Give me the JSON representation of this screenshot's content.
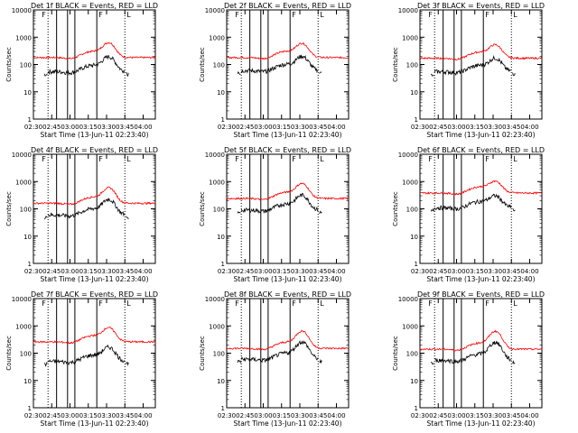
{
  "chart_data": {
    "type": "line",
    "panels": [
      {
        "title": "Det 1f BLACK = Events, RED = LLD",
        "markers": [
          "F",
          "L"
        ],
        "red_base": 180,
        "black_base": 55,
        "peak": 3.2
      },
      {
        "title": "Det 2f BLACK = Events, RED = LLD",
        "markers": [
          "F",
          "L"
        ],
        "red_base": 180,
        "black_base": 60,
        "peak": 3.0
      },
      {
        "title": "Det 3f BLACK = Events, RED = LLD",
        "markers": [
          "F",
          "L"
        ],
        "red_base": 170,
        "black_base": 55,
        "peak": 2.8
      },
      {
        "title": "Det 4f BLACK = Events, RED = LLD",
        "markers": [
          "F",
          "L"
        ],
        "red_base": 160,
        "black_base": 60,
        "peak": 3.4
      },
      {
        "title": "Det 5f BLACK = Events, RED = LLD",
        "markers": [
          "F",
          "L"
        ],
        "red_base": 240,
        "black_base": 90,
        "peak": 3.2
      },
      {
        "title": "Det 6f BLACK = Events, RED = LLD",
        "markers": [
          "F",
          "L"
        ],
        "red_base": 380,
        "black_base": 110,
        "peak": 2.4
      },
      {
        "title": "Det 7f BLACK = Events, RED = LLD",
        "markers": [
          "F",
          "L"
        ],
        "red_base": 260,
        "black_base": 50,
        "peak": 3.0
      },
      {
        "title": "Det 8f BLACK = Events, RED = LLD",
        "markers": [
          "F",
          "L"
        ],
        "red_base": 150,
        "black_base": 60,
        "peak": 4.0
      },
      {
        "title": "Det 9f BLACK = Events, RED = LLD",
        "markers": [
          "F",
          "L"
        ],
        "red_base": 140,
        "black_base": 55,
        "peak": 4.2
      }
    ],
    "x_ticks": [
      "02:30",
      "02:45",
      "03:00",
      "03:15",
      "03:30",
      "03:45",
      "04:00"
    ],
    "xlabel": "Start Time (13-Jun-11 02:23:40)",
    "ylabel": "Counts/sec",
    "y_ticks": [
      "1",
      "10",
      "100",
      "1000",
      "10000"
    ],
    "y_scale": "log",
    "ylim": [
      1,
      10000
    ],
    "series": [
      {
        "name": "Events",
        "color": "#000000"
      },
      {
        "name": "LLD",
        "color": "#ff0000"
      }
    ],
    "solid_vlines_min": [
      19,
      28,
      34,
      52
    ],
    "dotted_vlines_min": [
      12,
      75
    ]
  }
}
